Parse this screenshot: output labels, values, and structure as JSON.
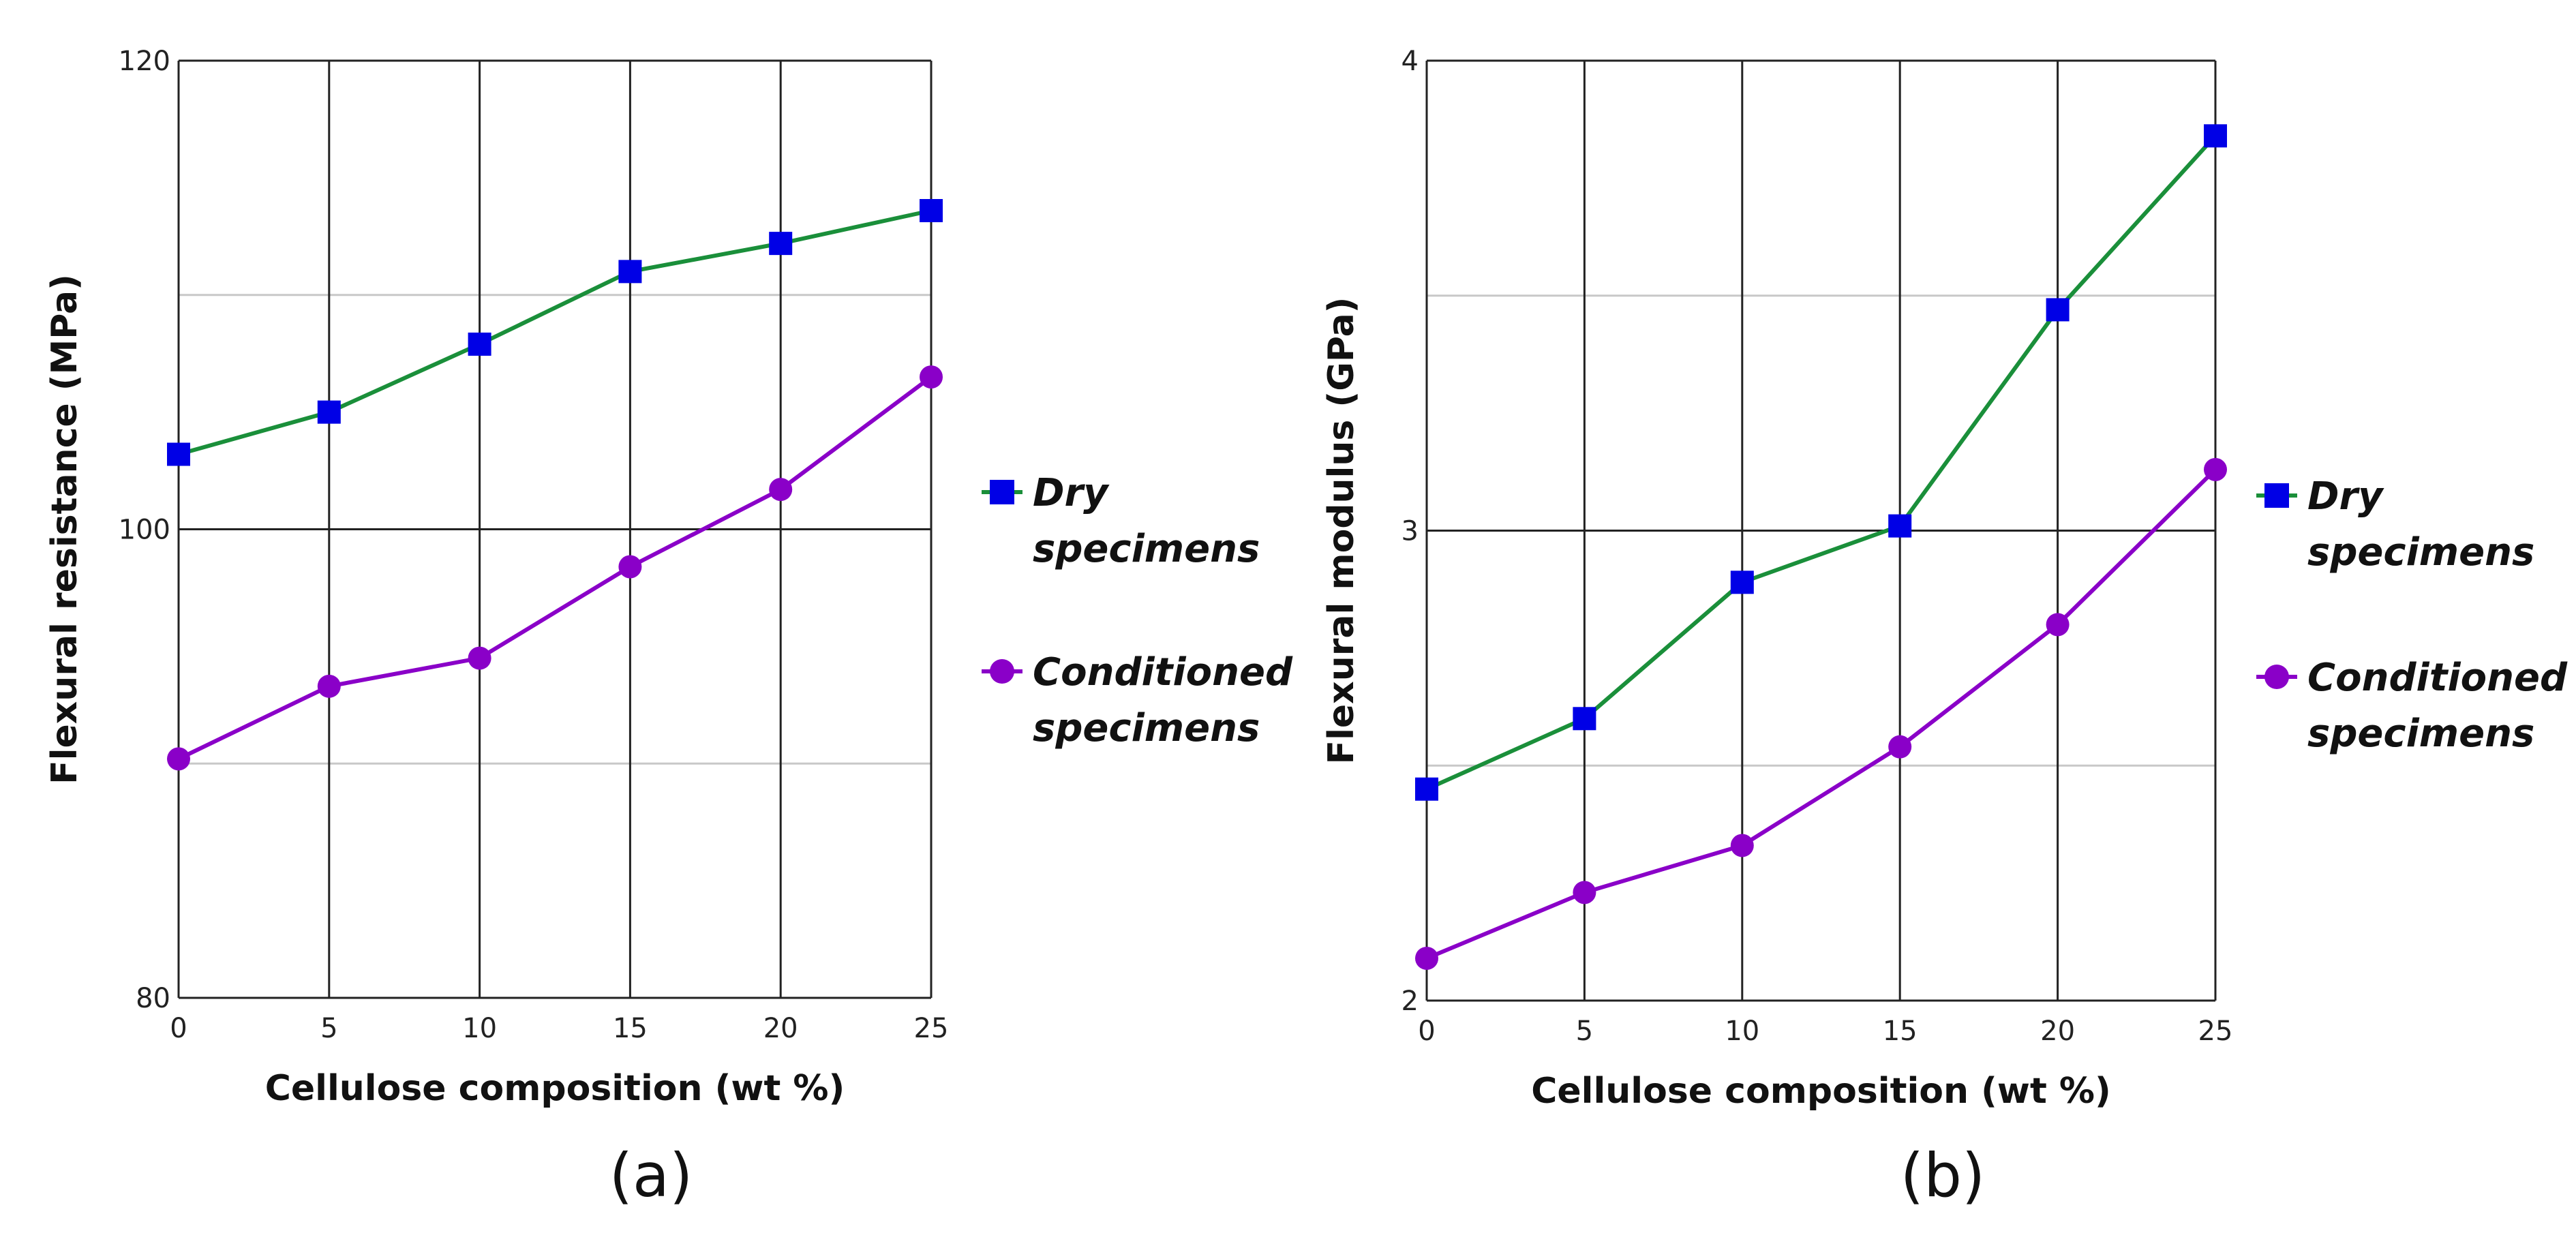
{
  "colors": {
    "dry": "#0000e6",
    "dry_line": "#1a8f3a",
    "conditioned": "#8a00c8",
    "conditioned_line": "#8a00c8",
    "grid_major": "#222222",
    "grid_minor": "#c8c8c8"
  },
  "chart_data": [
    {
      "type": "line",
      "panel_label": "(a)",
      "title": "",
      "xlabel": "Cellulose composition (wt %)",
      "ylabel": "Flexural resistance (MPa)",
      "x": [
        0,
        5,
        10,
        15,
        20,
        25
      ],
      "x_ticks": [
        "0",
        "5",
        "10",
        "15",
        "20",
        "25"
      ],
      "xlim": [
        0,
        25
      ],
      "ylim": [
        80,
        120
      ],
      "y_ticks": [
        80,
        100,
        120
      ],
      "y_tick_labels": [
        "80",
        "100",
        "120"
      ],
      "y_minor_grid": [
        90,
        110
      ],
      "grid": true,
      "series": [
        {
          "key": "dry",
          "name_line1": "Dry",
          "name_line2": "specimens",
          "marker": "square",
          "values": [
            103.2,
            105.0,
            107.9,
            111.0,
            112.2,
            113.6
          ]
        },
        {
          "key": "conditioned",
          "name_line1": "Conditioned",
          "name_line2": "specimens",
          "marker": "circle",
          "values": [
            90.2,
            93.3,
            94.5,
            98.4,
            101.7,
            106.5
          ]
        }
      ]
    },
    {
      "type": "line",
      "panel_label": "(b)",
      "title": "",
      "xlabel": "Cellulose composition (wt %)",
      "ylabel": "Flexural modulus (GPa)",
      "x": [
        0,
        5,
        10,
        15,
        20,
        25
      ],
      "x_ticks": [
        "0",
        "5",
        "10",
        "15",
        "20",
        "25"
      ],
      "xlim": [
        0,
        25
      ],
      "ylim": [
        2,
        4
      ],
      "y_ticks": [
        2,
        3,
        4
      ],
      "y_tick_labels": [
        "2",
        "3",
        "4"
      ],
      "y_minor_grid": [
        2.5,
        3.5
      ],
      "grid": true,
      "series": [
        {
          "key": "dry",
          "name_line1": "Dry",
          "name_line2": "specimens",
          "marker": "square",
          "values": [
            2.45,
            2.6,
            2.89,
            3.01,
            3.47,
            3.84
          ]
        },
        {
          "key": "conditioned",
          "name_line1": "Conditioned",
          "name_line2": "specimens",
          "marker": "circle",
          "values": [
            2.09,
            2.23,
            2.33,
            2.54,
            2.8,
            3.13
          ]
        }
      ]
    }
  ]
}
